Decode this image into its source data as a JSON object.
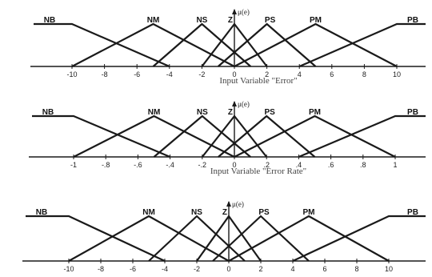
{
  "figure": {
    "axis_label": "μ(e)",
    "diagrams": [
      {
        "id": "error",
        "caption": "Input Variable \"Error\"",
        "tick_values": [
          -10,
          -8,
          -6,
          -4,
          -2,
          0,
          2,
          4,
          6,
          8,
          10
        ],
        "tick_labels": [
          "-10",
          "-8",
          "-6",
          "-4",
          "-2",
          "0",
          "2",
          "4",
          "6",
          "8",
          "10"
        ],
        "sets": [
          {
            "name": "NB",
            "points": [
              [
                -14,
                1
              ],
              [
                -10,
                1
              ],
              [
                -4,
                0
              ]
            ]
          },
          {
            "name": "NM",
            "points": [
              [
                -10,
                0
              ],
              [
                -5,
                1
              ],
              [
                0,
                0
              ]
            ]
          },
          {
            "name": "NS",
            "points": [
              [
                -5,
                0
              ],
              [
                -2,
                1
              ],
              [
                1,
                0
              ]
            ]
          },
          {
            "name": "Z",
            "points": [
              [
                -2,
                0
              ],
              [
                0,
                1
              ],
              [
                2,
                0
              ]
            ]
          },
          {
            "name": "PS",
            "points": [
              [
                -1,
                0
              ],
              [
                2,
                1
              ],
              [
                5,
                0
              ]
            ]
          },
          {
            "name": "PM",
            "points": [
              [
                0,
                0
              ],
              [
                5,
                1
              ],
              [
                10,
                0
              ]
            ]
          },
          {
            "name": "PB",
            "points": [
              [
                4,
                0
              ],
              [
                10,
                1
              ],
              [
                14,
                1
              ]
            ]
          }
        ]
      },
      {
        "id": "error-rate",
        "caption": "Input Variable \"Error Rate\"",
        "tick_values": [
          -1,
          -0.8,
          -0.6,
          -0.4,
          -0.2,
          0,
          0.2,
          0.4,
          0.6,
          0.8,
          1
        ],
        "tick_labels": [
          "-1",
          "-.8",
          "-.6",
          "-.4",
          "-.2",
          "0",
          ".2",
          ".4",
          ".6",
          ".8",
          "1"
        ],
        "sets": [
          {
            "name": "NB",
            "points": [
              [
                -1.4,
                1
              ],
              [
                -1,
                1
              ],
              [
                -0.4,
                0
              ]
            ]
          },
          {
            "name": "NM",
            "points": [
              [
                -1,
                0
              ],
              [
                -0.5,
                1
              ],
              [
                0,
                0
              ]
            ]
          },
          {
            "name": "NS",
            "points": [
              [
                -0.5,
                0
              ],
              [
                -0.2,
                1
              ],
              [
                0.1,
                0
              ]
            ]
          },
          {
            "name": "Z",
            "points": [
              [
                -0.2,
                0
              ],
              [
                0,
                1
              ],
              [
                0.2,
                0
              ]
            ]
          },
          {
            "name": "PS",
            "points": [
              [
                -0.1,
                0
              ],
              [
                0.2,
                1
              ],
              [
                0.5,
                0
              ]
            ]
          },
          {
            "name": "PM",
            "points": [
              [
                0,
                0
              ],
              [
                0.5,
                1
              ],
              [
                1,
                0
              ]
            ]
          },
          {
            "name": "PB",
            "points": [
              [
                0.4,
                0
              ],
              [
                1,
                1
              ],
              [
                1.4,
                1
              ]
            ]
          }
        ]
      },
      {
        "id": "third",
        "caption": "",
        "tick_values": [
          -10,
          -8,
          -6,
          -4,
          -2,
          0,
          2,
          4,
          6,
          8,
          10
        ],
        "tick_labels": [
          "-10",
          "-8",
          "-6",
          "-4",
          "-2",
          "0",
          "2",
          "4",
          "6",
          "8",
          "10"
        ],
        "sets": [
          {
            "name": "NB",
            "points": [
              [
                -14,
                1
              ],
              [
                -10,
                1
              ],
              [
                -4,
                0
              ]
            ]
          },
          {
            "name": "NM",
            "points": [
              [
                -10,
                0
              ],
              [
                -5,
                1
              ],
              [
                0,
                0
              ]
            ]
          },
          {
            "name": "NS",
            "points": [
              [
                -5,
                0
              ],
              [
                -2,
                1
              ],
              [
                1,
                0
              ]
            ]
          },
          {
            "name": "Z",
            "points": [
              [
                -2,
                0
              ],
              [
                0,
                1
              ],
              [
                2,
                0
              ]
            ]
          },
          {
            "name": "PS",
            "points": [
              [
                -1,
                0
              ],
              [
                2,
                1
              ],
              [
                5,
                0
              ]
            ]
          },
          {
            "name": "PM",
            "points": [
              [
                0,
                0
              ],
              [
                5,
                1
              ],
              [
                10,
                0
              ]
            ]
          },
          {
            "name": "PB",
            "points": [
              [
                4,
                0
              ],
              [
                10,
                1
              ],
              [
                14,
                1
              ]
            ]
          }
        ]
      }
    ]
  }
}
